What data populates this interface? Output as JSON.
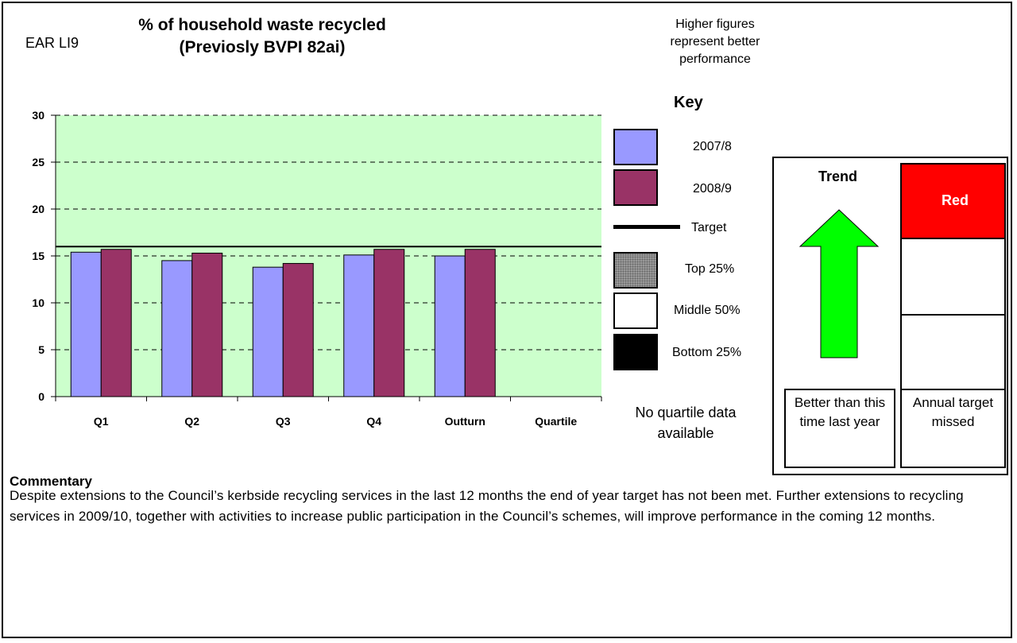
{
  "header": {
    "code": "EAR LI9",
    "title": "% of household waste recycled (Previosly BVPI 82ai)",
    "note": "Higher figures represent better performance"
  },
  "chart_data": {
    "type": "bar",
    "categories": [
      "Q1",
      "Q2",
      "Q3",
      "Q4",
      "Outturn",
      "Quartile"
    ],
    "series": [
      {
        "name": "2007/8",
        "values": [
          15.4,
          14.5,
          13.8,
          15.1,
          15.0,
          null
        ],
        "color": "#9999ff"
      },
      {
        "name": "2008/9",
        "values": [
          15.7,
          15.3,
          14.2,
          15.7,
          15.7,
          null
        ],
        "color": "#993366"
      }
    ],
    "target": 16.0,
    "ylim": [
      0,
      30
    ],
    "yticks": [
      "0",
      "5",
      "10",
      "15",
      "20",
      "25",
      "30"
    ],
    "grid": "dashed horizontal",
    "background_color": "#ccffcc"
  },
  "key": {
    "title": "Key",
    "items": [
      {
        "label": "2007/8",
        "kind": "swatch",
        "color": "#9999ff"
      },
      {
        "label": "2008/9",
        "kind": "swatch",
        "color": "#993366"
      },
      {
        "label": "Target",
        "kind": "line",
        "color": "#000000"
      },
      {
        "label": "Top 25%",
        "kind": "swatch",
        "color": "#999999"
      },
      {
        "label": "Middle 50%",
        "kind": "swatch",
        "color": "#ffffff"
      },
      {
        "label": "Bottom 25%",
        "kind": "swatch",
        "color": "#000000"
      }
    ],
    "no_quartile": "No quartile data available"
  },
  "indicators": {
    "trend_title": "Trend",
    "trend_icon": "up-arrow-icon",
    "trend_color": "#00ff00",
    "trend_caption": "Better than this time last year",
    "status_label": "Red",
    "status_color": "#ff0000",
    "status_caption": "Annual target missed"
  },
  "commentary": {
    "title": "Commentary",
    "text": "Despite extensions to the Council’s kerbside recycling services in the last 12 months the end of year target has not been met. Further extensions to recycling services in 2009/10, together with activities to increase public participation in the Council’s schemes, will improve performance in the coming 12 months."
  }
}
